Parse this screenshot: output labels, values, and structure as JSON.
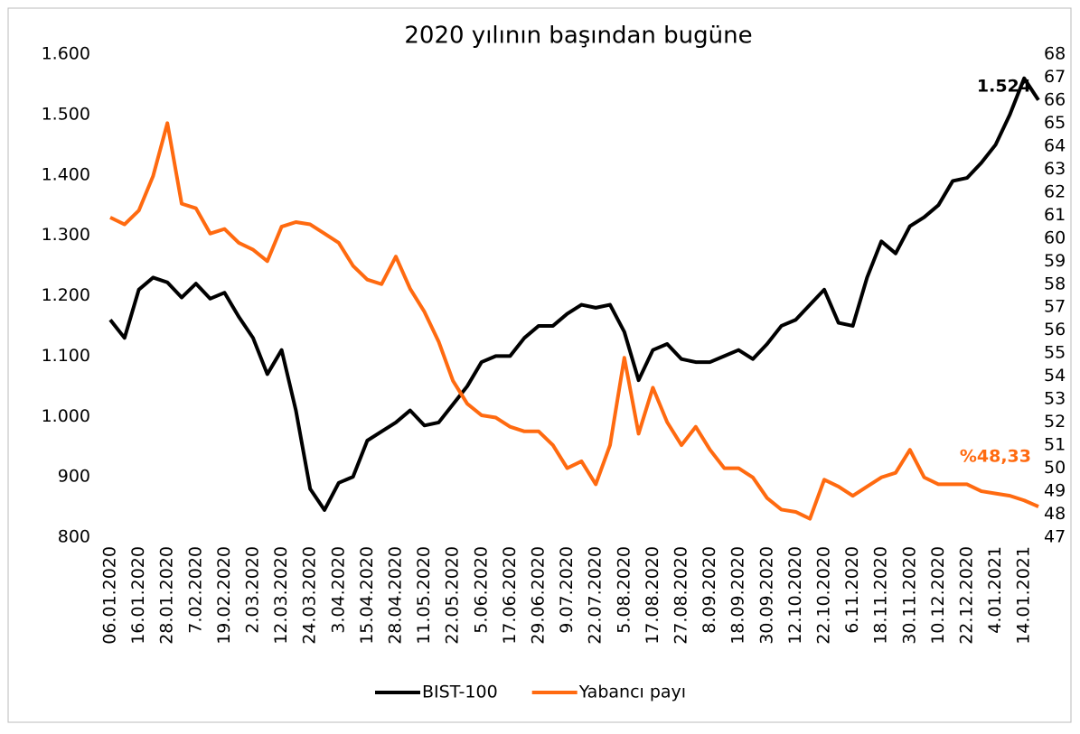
{
  "chart_data": {
    "type": "line",
    "title": "2020 yılının başından bugüne",
    "categories": [
      "06.01.2020",
      null,
      "16.01.2020",
      null,
      "28.01.2020",
      null,
      "7.02.2020",
      null,
      "19.02.2020",
      null,
      "2.03.2020",
      null,
      "12.03.2020",
      null,
      "24.03.2020",
      null,
      "3.04.2020",
      null,
      "15.04.2020",
      null,
      "28.04.2020",
      null,
      "11.05.2020",
      null,
      "22.05.2020",
      null,
      "5.06.2020",
      null,
      "17.06.2020",
      null,
      "29.06.2020",
      null,
      "9.07.2020",
      null,
      "22.07.2020",
      null,
      "5.08.2020",
      null,
      "17.08.2020",
      null,
      "27.08.2020",
      null,
      "8.09.2020",
      null,
      "18.09.2020",
      null,
      "30.09.2020",
      null,
      "12.10.2020",
      null,
      "22.10.2020",
      null,
      "6.11.2020",
      null,
      "18.11.2020",
      null,
      "30.11.2020",
      null,
      "10.12.2020",
      null,
      "22.12.2020",
      null,
      "4.01.2021",
      null,
      "14.01.2021",
      null
    ],
    "series": [
      {
        "name": "BIST-100",
        "color": "#000000",
        "axis": "y",
        "values": [
          1160,
          1130,
          1210,
          1230,
          1222,
          1197,
          1220,
          1195,
          1205,
          1165,
          1130,
          1070,
          1110,
          1010,
          880,
          845,
          890,
          900,
          960,
          975,
          990,
          1010,
          985,
          990,
          1020,
          1050,
          1090,
          1100,
          1100,
          1130,
          1150,
          1150,
          1170,
          1185,
          1180,
          1185,
          1140,
          1060,
          1110,
          1120,
          1095,
          1090,
          1090,
          1100,
          1110,
          1095,
          1120,
          1150,
          1160,
          1185,
          1210,
          1155,
          1150,
          1230,
          1290,
          1270,
          1315,
          1330,
          1350,
          1390,
          1395,
          1420,
          1450,
          1500,
          1560,
          1524
        ],
        "value_labels": [
          null,
          null,
          null,
          null,
          null,
          null,
          null,
          null,
          null,
          null,
          null,
          null,
          null,
          null,
          null,
          null,
          null,
          null,
          null,
          null,
          null,
          null,
          null,
          null,
          null,
          null,
          null,
          null,
          null,
          null,
          null,
          null,
          null,
          null,
          null,
          null,
          null,
          null,
          null,
          null,
          null,
          null,
          null,
          null,
          null,
          null,
          null,
          null,
          null,
          null,
          null,
          null,
          null,
          null,
          null,
          null,
          null,
          null,
          null,
          null,
          null,
          null,
          null,
          null,
          null,
          "1.524"
        ]
      },
      {
        "name": "Yabancı payı",
        "color": "#ff6a10",
        "axis": "y2",
        "values": [
          60.9,
          60.6,
          61.2,
          62.7,
          65.0,
          61.5,
          61.3,
          60.2,
          60.4,
          59.8,
          59.5,
          59.0,
          60.5,
          60.7,
          60.6,
          60.2,
          59.8,
          58.8,
          58.2,
          58.0,
          59.2,
          57.8,
          56.8,
          55.5,
          53.8,
          52.8,
          52.3,
          52.2,
          51.8,
          51.6,
          51.6,
          51.0,
          50.0,
          50.3,
          49.3,
          51.0,
          54.8,
          51.5,
          53.5,
          52.0,
          51.0,
          51.8,
          50.8,
          50.0,
          50.0,
          49.6,
          48.7,
          48.2,
          48.1,
          47.8,
          49.5,
          49.2,
          48.8,
          49.2,
          49.6,
          49.8,
          50.8,
          49.6,
          49.3,
          49.3,
          49.3,
          49.0,
          48.9,
          48.8,
          48.6,
          48.33
        ],
        "value_labels": [
          null,
          null,
          null,
          null,
          null,
          null,
          null,
          null,
          null,
          null,
          null,
          null,
          null,
          null,
          null,
          null,
          null,
          null,
          null,
          null,
          null,
          null,
          null,
          null,
          null,
          null,
          null,
          null,
          null,
          null,
          null,
          null,
          null,
          null,
          null,
          null,
          null,
          null,
          null,
          null,
          null,
          null,
          null,
          null,
          null,
          null,
          null,
          null,
          null,
          null,
          null,
          null,
          null,
          null,
          null,
          null,
          null,
          null,
          null,
          null,
          null,
          null,
          null,
          null,
          null,
          "%48,33"
        ]
      }
    ],
    "ylim": [
      800,
      1600
    ],
    "yticks": [
      {
        "value": 800,
        "label": "800"
      },
      {
        "value": 900,
        "label": "900"
      },
      {
        "value": 1000,
        "label": "1.000"
      },
      {
        "value": 1100,
        "label": "1.100"
      },
      {
        "value": 1200,
        "label": "1.200"
      },
      {
        "value": 1300,
        "label": "1.300"
      },
      {
        "value": 1400,
        "label": "1.400"
      },
      {
        "value": 1500,
        "label": "1.500"
      },
      {
        "value": 1600,
        "label": "1.600"
      }
    ],
    "y2lim": [
      47,
      68
    ],
    "y2ticks": [
      47,
      48,
      49,
      50,
      51,
      52,
      53,
      54,
      55,
      56,
      57,
      58,
      59,
      60,
      61,
      62,
      63,
      64,
      65,
      66,
      67,
      68
    ],
    "grid": false,
    "legend": "bottom"
  }
}
